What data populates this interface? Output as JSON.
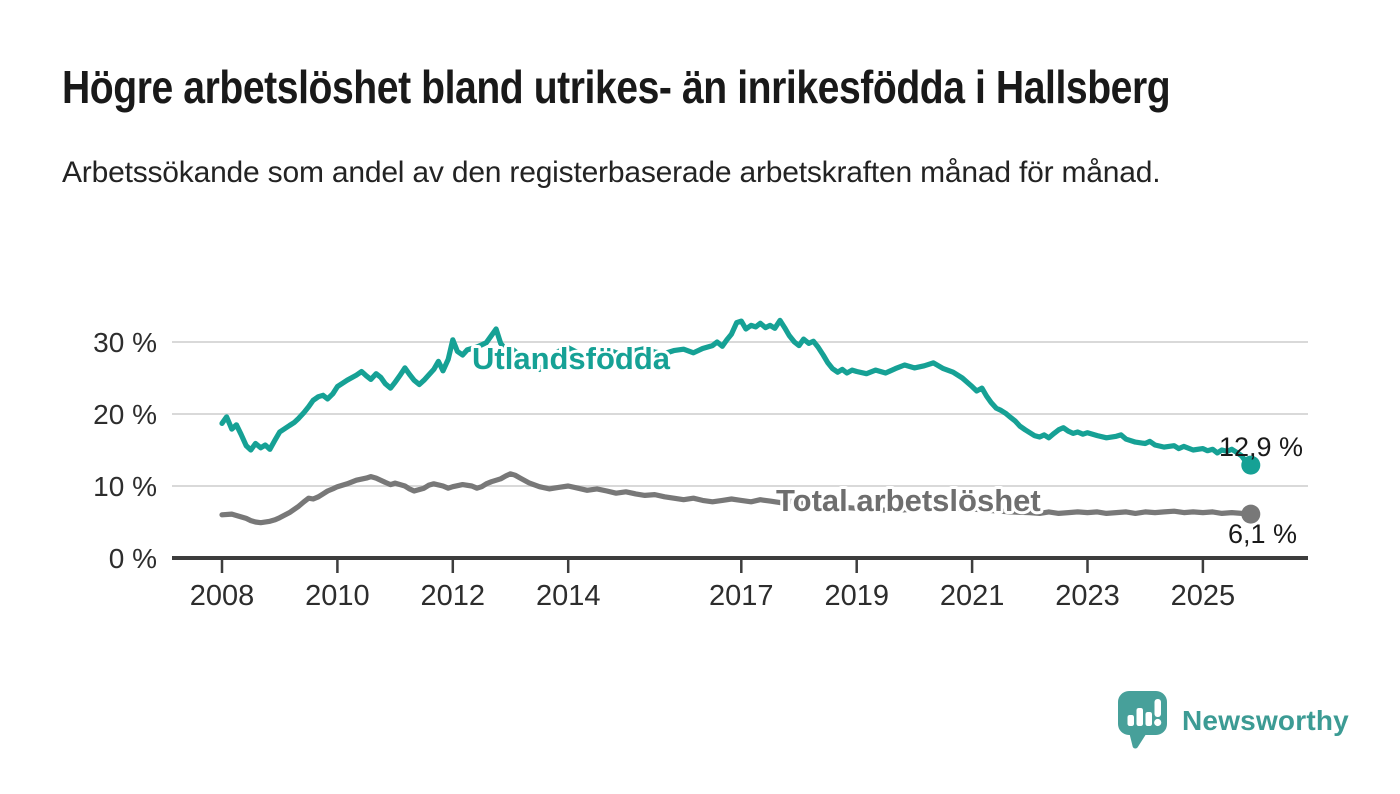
{
  "title": "Högre arbetslöshet bland utrikes- än inrikesfödda i Hallsberg",
  "subtitle": "Arbetssökande som andel av den registerbaserade arbetskraften månad för månad.",
  "branding": {
    "logo_text": "Newsworthy",
    "logo_icon": "bar-chart-speech-bubble-icon"
  },
  "colors": {
    "foreign_born": "#16a195",
    "total": "#787878",
    "total_label": "#6e6e6e",
    "grid": "#d9d9d9",
    "axis": "#3d3d3d",
    "tick_text": "#2d2d2d",
    "value_text": "#1a1a1a",
    "logo_icon": "#47a09a",
    "logo_text": "#3c9b94"
  },
  "chart_data": {
    "type": "line",
    "title": "",
    "xlabel": "",
    "ylabel": "",
    "x_unit": "decimal_year",
    "xlim": [
      2007.1,
      2026.8
    ],
    "ylim": [
      0,
      34
    ],
    "grid": "horizontal",
    "legend_position": "inline-labels",
    "xticks": [
      2008,
      2010,
      2012,
      2014,
      2017,
      2019,
      2021,
      2023,
      2025
    ],
    "yticks": [
      {
        "value": 0,
        "label": "0 %"
      },
      {
        "value": 10,
        "label": "10 %"
      },
      {
        "value": 20,
        "label": "20 %"
      },
      {
        "value": 30,
        "label": "30 %"
      }
    ],
    "series": [
      {
        "name": "Utlandsfödda",
        "end_label": "12,9 %",
        "end_value": 12.9,
        "color": "#16a195",
        "points": [
          [
            2008.0,
            18.7
          ],
          [
            2008.08,
            19.6
          ],
          [
            2008.17,
            17.9
          ],
          [
            2008.25,
            18.5
          ],
          [
            2008.33,
            17.2
          ],
          [
            2008.42,
            15.6
          ],
          [
            2008.5,
            15.0
          ],
          [
            2008.58,
            15.9
          ],
          [
            2008.67,
            15.3
          ],
          [
            2008.75,
            15.7
          ],
          [
            2008.83,
            15.1
          ],
          [
            2008.92,
            16.4
          ],
          [
            2009.0,
            17.5
          ],
          [
            2009.17,
            18.4
          ],
          [
            2009.25,
            18.8
          ],
          [
            2009.33,
            19.4
          ],
          [
            2009.42,
            20.2
          ],
          [
            2009.5,
            21.0
          ],
          [
            2009.58,
            21.9
          ],
          [
            2009.67,
            22.4
          ],
          [
            2009.75,
            22.6
          ],
          [
            2009.83,
            22.1
          ],
          [
            2009.92,
            22.8
          ],
          [
            2010.0,
            23.8
          ],
          [
            2010.17,
            24.7
          ],
          [
            2010.33,
            25.4
          ],
          [
            2010.42,
            25.9
          ],
          [
            2010.5,
            25.3
          ],
          [
            2010.58,
            24.8
          ],
          [
            2010.67,
            25.6
          ],
          [
            2010.75,
            25.1
          ],
          [
            2010.83,
            24.2
          ],
          [
            2010.92,
            23.6
          ],
          [
            2011.0,
            24.4
          ],
          [
            2011.08,
            25.3
          ],
          [
            2011.17,
            26.4
          ],
          [
            2011.25,
            25.5
          ],
          [
            2011.33,
            24.7
          ],
          [
            2011.42,
            24.1
          ],
          [
            2011.5,
            24.7
          ],
          [
            2011.58,
            25.4
          ],
          [
            2011.67,
            26.2
          ],
          [
            2011.75,
            27.3
          ],
          [
            2011.83,
            26.0
          ],
          [
            2011.92,
            27.6
          ],
          [
            2012.0,
            30.3
          ],
          [
            2012.08,
            28.7
          ],
          [
            2012.17,
            28.2
          ],
          [
            2012.25,
            28.9
          ],
          [
            2012.42,
            29.3
          ],
          [
            2012.58,
            29.9
          ],
          [
            2012.75,
            31.8
          ],
          [
            2012.83,
            29.8
          ],
          [
            2012.92,
            28.9
          ],
          [
            2013.0,
            29.2
          ],
          [
            2013.17,
            28.1
          ],
          [
            2013.33,
            27.0
          ],
          [
            2013.5,
            26.2
          ],
          [
            2013.67,
            27.5
          ],
          [
            2013.83,
            28.7
          ],
          [
            2014.0,
            29.2
          ],
          [
            2014.17,
            28.5
          ],
          [
            2014.33,
            27.9
          ],
          [
            2014.5,
            28.4
          ],
          [
            2014.67,
            29.0
          ],
          [
            2014.83,
            28.5
          ],
          [
            2015.0,
            28.2
          ],
          [
            2015.17,
            28.8
          ],
          [
            2015.33,
            29.1
          ],
          [
            2015.5,
            28.6
          ],
          [
            2015.67,
            28.4
          ],
          [
            2015.83,
            28.8
          ],
          [
            2016.0,
            29.0
          ],
          [
            2016.17,
            28.5
          ],
          [
            2016.33,
            29.1
          ],
          [
            2016.5,
            29.5
          ],
          [
            2016.58,
            30.0
          ],
          [
            2016.67,
            29.4
          ],
          [
            2016.75,
            30.3
          ],
          [
            2016.83,
            31.1
          ],
          [
            2016.92,
            32.7
          ],
          [
            2017.0,
            32.9
          ],
          [
            2017.08,
            31.8
          ],
          [
            2017.17,
            32.3
          ],
          [
            2017.25,
            32.1
          ],
          [
            2017.33,
            32.6
          ],
          [
            2017.42,
            32.0
          ],
          [
            2017.5,
            32.3
          ],
          [
            2017.58,
            31.9
          ],
          [
            2017.67,
            33.0
          ],
          [
            2017.75,
            32.0
          ],
          [
            2017.83,
            30.9
          ],
          [
            2017.92,
            30.0
          ],
          [
            2018.0,
            29.5
          ],
          [
            2018.08,
            30.4
          ],
          [
            2018.17,
            29.8
          ],
          [
            2018.25,
            30.1
          ],
          [
            2018.33,
            29.3
          ],
          [
            2018.42,
            28.2
          ],
          [
            2018.5,
            27.1
          ],
          [
            2018.58,
            26.3
          ],
          [
            2018.67,
            25.8
          ],
          [
            2018.75,
            26.2
          ],
          [
            2018.83,
            25.7
          ],
          [
            2018.92,
            26.1
          ],
          [
            2019.0,
            25.9
          ],
          [
            2019.17,
            25.6
          ],
          [
            2019.33,
            26.1
          ],
          [
            2019.5,
            25.7
          ],
          [
            2019.67,
            26.3
          ],
          [
            2019.83,
            26.8
          ],
          [
            2020.0,
            26.4
          ],
          [
            2020.17,
            26.7
          ],
          [
            2020.33,
            27.1
          ],
          [
            2020.5,
            26.3
          ],
          [
            2020.67,
            25.8
          ],
          [
            2020.83,
            25.0
          ],
          [
            2021.0,
            23.8
          ],
          [
            2021.08,
            23.2
          ],
          [
            2021.17,
            23.6
          ],
          [
            2021.25,
            22.5
          ],
          [
            2021.33,
            21.6
          ],
          [
            2021.42,
            20.8
          ],
          [
            2021.5,
            20.5
          ],
          [
            2021.58,
            20.1
          ],
          [
            2021.67,
            19.5
          ],
          [
            2021.75,
            19.0
          ],
          [
            2021.83,
            18.3
          ],
          [
            2021.92,
            17.8
          ],
          [
            2022.0,
            17.4
          ],
          [
            2022.08,
            17.0
          ],
          [
            2022.17,
            16.8
          ],
          [
            2022.25,
            17.1
          ],
          [
            2022.33,
            16.7
          ],
          [
            2022.42,
            17.3
          ],
          [
            2022.5,
            17.8
          ],
          [
            2022.58,
            18.1
          ],
          [
            2022.67,
            17.6
          ],
          [
            2022.75,
            17.3
          ],
          [
            2022.83,
            17.5
          ],
          [
            2022.92,
            17.2
          ],
          [
            2023.0,
            17.4
          ],
          [
            2023.17,
            17.0
          ],
          [
            2023.33,
            16.7
          ],
          [
            2023.5,
            16.9
          ],
          [
            2023.58,
            17.1
          ],
          [
            2023.67,
            16.5
          ],
          [
            2023.83,
            16.1
          ],
          [
            2024.0,
            15.9
          ],
          [
            2024.08,
            16.2
          ],
          [
            2024.17,
            15.7
          ],
          [
            2024.33,
            15.4
          ],
          [
            2024.5,
            15.6
          ],
          [
            2024.58,
            15.2
          ],
          [
            2024.67,
            15.5
          ],
          [
            2024.83,
            15.0
          ],
          [
            2025.0,
            15.2
          ],
          [
            2025.08,
            14.9
          ],
          [
            2025.17,
            15.1
          ],
          [
            2025.25,
            14.6
          ],
          [
            2025.33,
            15.0
          ],
          [
            2025.42,
            14.8
          ],
          [
            2025.5,
            15.1
          ],
          [
            2025.58,
            14.7
          ],
          [
            2025.67,
            14.2
          ],
          [
            2025.75,
            13.3
          ],
          [
            2025.83,
            12.9
          ]
        ]
      },
      {
        "name": "Total arbetslöshet",
        "end_label": "6,1 %",
        "end_value": 6.1,
        "color": "#787878",
        "points": [
          [
            2008.0,
            6.0
          ],
          [
            2008.17,
            6.1
          ],
          [
            2008.25,
            5.9
          ],
          [
            2008.42,
            5.5
          ],
          [
            2008.5,
            5.2
          ],
          [
            2008.58,
            5.0
          ],
          [
            2008.67,
            4.9
          ],
          [
            2008.83,
            5.1
          ],
          [
            2008.92,
            5.3
          ],
          [
            2009.0,
            5.6
          ],
          [
            2009.17,
            6.3
          ],
          [
            2009.33,
            7.2
          ],
          [
            2009.42,
            7.8
          ],
          [
            2009.5,
            8.3
          ],
          [
            2009.58,
            8.2
          ],
          [
            2009.67,
            8.5
          ],
          [
            2009.75,
            8.9
          ],
          [
            2009.83,
            9.3
          ],
          [
            2009.92,
            9.6
          ],
          [
            2010.0,
            9.9
          ],
          [
            2010.17,
            10.3
          ],
          [
            2010.33,
            10.8
          ],
          [
            2010.5,
            11.1
          ],
          [
            2010.58,
            11.3
          ],
          [
            2010.67,
            11.1
          ],
          [
            2010.75,
            10.8
          ],
          [
            2010.83,
            10.5
          ],
          [
            2010.92,
            10.2
          ],
          [
            2011.0,
            10.4
          ],
          [
            2011.17,
            10.0
          ],
          [
            2011.25,
            9.6
          ],
          [
            2011.33,
            9.3
          ],
          [
            2011.5,
            9.7
          ],
          [
            2011.58,
            10.1
          ],
          [
            2011.67,
            10.3
          ],
          [
            2011.83,
            10.0
          ],
          [
            2011.92,
            9.7
          ],
          [
            2012.0,
            9.9
          ],
          [
            2012.17,
            10.2
          ],
          [
            2012.33,
            10.0
          ],
          [
            2012.42,
            9.7
          ],
          [
            2012.5,
            9.9
          ],
          [
            2012.58,
            10.3
          ],
          [
            2012.67,
            10.6
          ],
          [
            2012.83,
            11.0
          ],
          [
            2012.92,
            11.4
          ],
          [
            2013.0,
            11.7
          ],
          [
            2013.08,
            11.5
          ],
          [
            2013.17,
            11.1
          ],
          [
            2013.33,
            10.4
          ],
          [
            2013.5,
            9.9
          ],
          [
            2013.67,
            9.6
          ],
          [
            2013.83,
            9.8
          ],
          [
            2014.0,
            10.0
          ],
          [
            2014.17,
            9.7
          ],
          [
            2014.33,
            9.4
          ],
          [
            2014.5,
            9.6
          ],
          [
            2014.67,
            9.3
          ],
          [
            2014.83,
            9.0
          ],
          [
            2015.0,
            9.2
          ],
          [
            2015.17,
            8.9
          ],
          [
            2015.33,
            8.7
          ],
          [
            2015.5,
            8.8
          ],
          [
            2015.67,
            8.5
          ],
          [
            2015.83,
            8.3
          ],
          [
            2016.0,
            8.1
          ],
          [
            2016.17,
            8.3
          ],
          [
            2016.33,
            8.0
          ],
          [
            2016.5,
            7.8
          ],
          [
            2016.67,
            8.0
          ],
          [
            2016.83,
            8.2
          ],
          [
            2017.0,
            8.0
          ],
          [
            2017.17,
            7.8
          ],
          [
            2017.33,
            8.1
          ],
          [
            2017.5,
            7.9
          ],
          [
            2017.67,
            7.7
          ],
          [
            2017.83,
            7.9
          ],
          [
            2018.0,
            7.7
          ],
          [
            2018.33,
            7.4
          ],
          [
            2018.67,
            7.1
          ],
          [
            2019.0,
            6.9
          ],
          [
            2019.33,
            6.7
          ],
          [
            2019.67,
            6.6
          ],
          [
            2020.0,
            6.8
          ],
          [
            2020.25,
            7.2
          ],
          [
            2020.5,
            7.0
          ],
          [
            2020.75,
            6.9
          ],
          [
            2021.0,
            6.8
          ],
          [
            2021.33,
            6.6
          ],
          [
            2021.67,
            6.4
          ],
          [
            2022.0,
            6.3
          ],
          [
            2022.17,
            6.2
          ],
          [
            2022.33,
            6.4
          ],
          [
            2022.5,
            6.2
          ],
          [
            2022.67,
            6.3
          ],
          [
            2022.83,
            6.4
          ],
          [
            2023.0,
            6.3
          ],
          [
            2023.17,
            6.4
          ],
          [
            2023.33,
            6.2
          ],
          [
            2023.5,
            6.3
          ],
          [
            2023.67,
            6.4
          ],
          [
            2023.83,
            6.2
          ],
          [
            2024.0,
            6.4
          ],
          [
            2024.17,
            6.3
          ],
          [
            2024.33,
            6.4
          ],
          [
            2024.5,
            6.5
          ],
          [
            2024.67,
            6.3
          ],
          [
            2024.83,
            6.4
          ],
          [
            2025.0,
            6.3
          ],
          [
            2025.17,
            6.4
          ],
          [
            2025.33,
            6.2
          ],
          [
            2025.5,
            6.3
          ],
          [
            2025.67,
            6.2
          ],
          [
            2025.83,
            6.1
          ]
        ]
      }
    ]
  }
}
